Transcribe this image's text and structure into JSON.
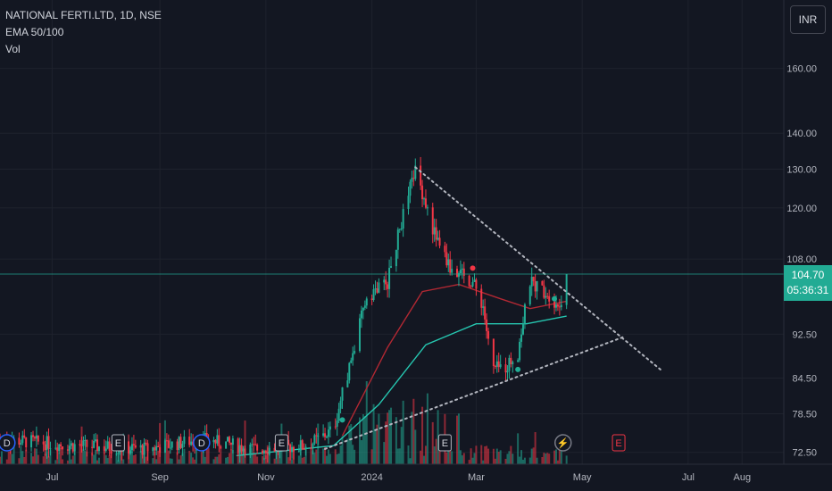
{
  "header": {
    "symbol_line": "NATIONAL FERTI.LTD, 1D, NSE",
    "indicator_ema": "EMA 50/100",
    "indicator_vol": "Vol"
  },
  "currency_button": "INR",
  "last_price": {
    "price": "104.70",
    "countdown": "05:36:31"
  },
  "colors": {
    "background": "#131722",
    "up": "#22ab94",
    "down": "#f23645",
    "ema50": "#b22833",
    "ema100": "#26c6b0",
    "trendline": "#b2b5be",
    "grid": "#1e222d",
    "axis_text": "#b2b5be"
  },
  "chart_data": {
    "type": "candlestick",
    "title": "NATIONAL FERTI.LTD, 1D, NSE",
    "y_scale": "log",
    "ylim": [
      71,
      175
    ],
    "y_ticks": [
      "72.50",
      "78.50",
      "84.50",
      "92.50",
      "108.00",
      "120.00",
      "130.00",
      "140.00",
      "160.00"
    ],
    "x_ticks": [
      "Jul",
      "Sep",
      "Nov",
      "2024",
      "Mar",
      "May",
      "Jul",
      "Aug"
    ],
    "x_range": [
      "2023-06-01",
      "2024-08-25"
    ],
    "price_key_points": [
      {
        "date": "2023-06-01",
        "price": 74.5
      },
      {
        "date": "2023-07-15",
        "price": 73.5
      },
      {
        "date": "2023-08-25",
        "price": 73.0
      },
      {
        "date": "2023-09-25",
        "price": 74.5
      },
      {
        "date": "2023-10-25",
        "price": 73.0
      },
      {
        "date": "2023-11-25",
        "price": 73.5
      },
      {
        "date": "2023-12-10",
        "price": 76.0
      },
      {
        "date": "2023-12-22",
        "price": 90.0
      },
      {
        "date": "2023-12-29",
        "price": 100.0
      },
      {
        "date": "2024-01-10",
        "price": 103.0
      },
      {
        "date": "2024-01-20",
        "price": 120.0
      },
      {
        "date": "2024-01-26",
        "price": 130.0
      },
      {
        "date": "2024-02-05",
        "price": 115.0
      },
      {
        "date": "2024-02-15",
        "price": 106.0
      },
      {
        "date": "2024-02-28",
        "price": 103.0
      },
      {
        "date": "2024-03-05",
        "price": 98.0
      },
      {
        "date": "2024-03-10",
        "price": 86.0
      },
      {
        "date": "2024-03-18",
        "price": 86.5
      },
      {
        "date": "2024-03-25",
        "price": 89.0
      },
      {
        "date": "2024-04-01",
        "price": 103.0
      },
      {
        "date": "2024-04-10",
        "price": 101.0
      },
      {
        "date": "2024-04-18",
        "price": 98.0
      },
      {
        "date": "2024-04-22",
        "price": 104.7
      }
    ],
    "ema50_points": [
      {
        "date": "2023-12-15",
        "price": 75.0
      },
      {
        "date": "2024-01-10",
        "price": 90.0
      },
      {
        "date": "2024-01-30",
        "price": 101.0
      },
      {
        "date": "2024-02-20",
        "price": 102.5
      },
      {
        "date": "2024-03-15",
        "price": 99.5
      },
      {
        "date": "2024-04-01",
        "price": 97.5
      },
      {
        "date": "2024-04-22",
        "price": 99.0
      }
    ],
    "ema100_points": [
      {
        "date": "2023-10-15",
        "price": 72.0
      },
      {
        "date": "2023-12-10",
        "price": 73.5
      },
      {
        "date": "2024-01-05",
        "price": 80.0
      },
      {
        "date": "2024-02-01",
        "price": 90.5
      },
      {
        "date": "2024-03-01",
        "price": 94.5
      },
      {
        "date": "2024-03-30",
        "price": 94.5
      },
      {
        "date": "2024-04-22",
        "price": 96.0
      }
    ],
    "trendlines": [
      {
        "name": "upper",
        "from": {
          "date": "2024-01-26",
          "price": 130.5
        },
        "to": {
          "date": "2024-06-15",
          "price": 86.0
        }
      },
      {
        "name": "lower",
        "from": {
          "date": "2023-12-05",
          "price": 73.0
        },
        "to": {
          "date": "2024-05-25",
          "price": 92.0
        }
      }
    ],
    "signals": [
      {
        "date": "2024-02-28",
        "price": 106.0,
        "color": "#f23645"
      },
      {
        "date": "2024-04-15",
        "price": 99.5,
        "color": "#22ab94"
      },
      {
        "date": "2024-03-25",
        "price": 86.0,
        "color": "#22ab94"
      },
      {
        "date": "2023-12-15",
        "price": 77.5,
        "color": "#22ab94"
      }
    ],
    "event_markers": [
      {
        "date": "2023-06-05",
        "label": "D",
        "kind": "dividend"
      },
      {
        "date": "2023-08-08",
        "label": "E",
        "kind": "earnings"
      },
      {
        "date": "2023-09-25",
        "label": "D",
        "kind": "dividend"
      },
      {
        "date": "2023-11-10",
        "label": "E",
        "kind": "earnings"
      },
      {
        "date": "2024-02-12",
        "label": "E",
        "kind": "earnings"
      },
      {
        "date": "2024-04-20",
        "label": "⚡",
        "kind": "split"
      },
      {
        "date": "2024-05-22",
        "label": "E",
        "kind": "earnings-upcoming"
      }
    ],
    "last_price_line": 104.7,
    "grid": true,
    "legend_position": "top-left"
  }
}
